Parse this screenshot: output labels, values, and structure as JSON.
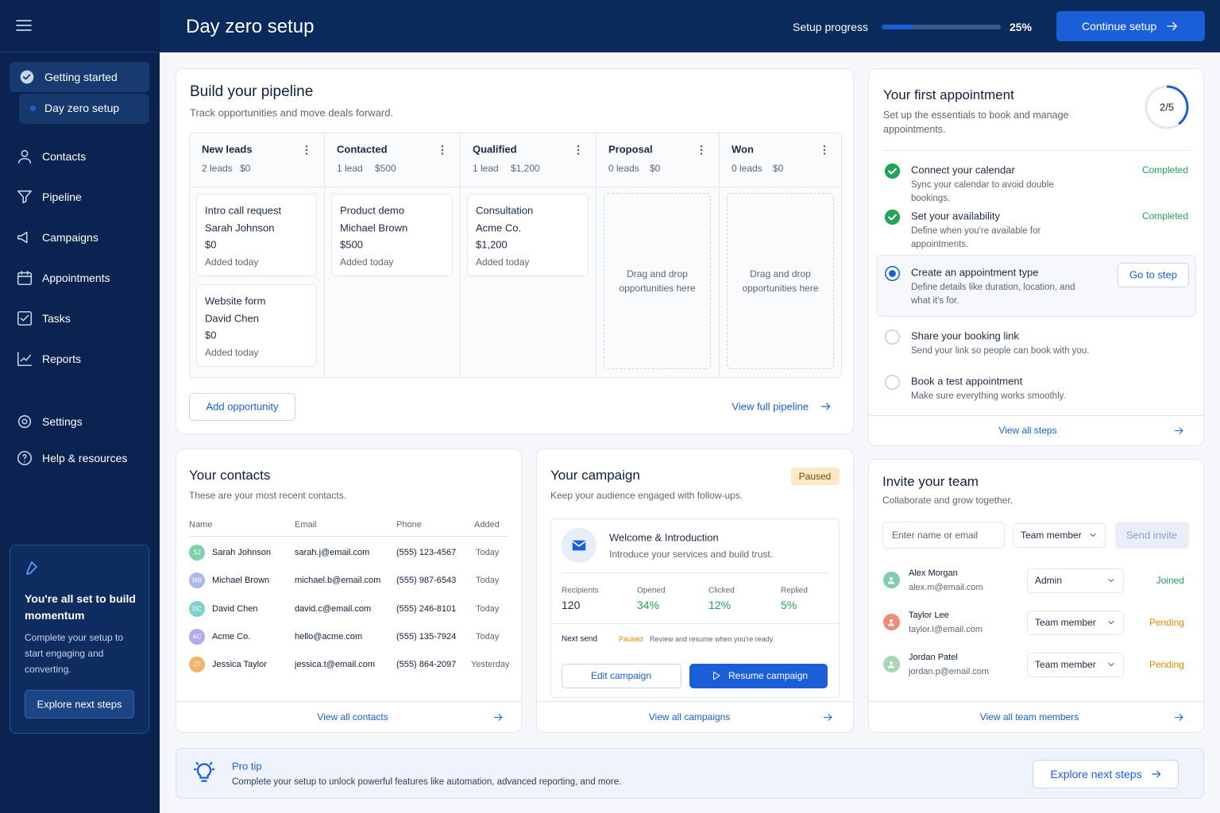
{
  "header": {
    "title": "Day zero setup",
    "progress_label": "Setup progress",
    "progress": {
      "value": 25,
      "label": "25%"
    },
    "button": "Continue setup"
  },
  "sidebar": {
    "items": [
      {
        "label": "Getting started",
        "sub": "Day zero setup"
      },
      {
        "label": "Contacts"
      },
      {
        "label": "Pipeline"
      },
      {
        "label": "Campaigns"
      },
      {
        "label": "Appointments"
      },
      {
        "label": "Tasks"
      },
      {
        "label": "Reports"
      },
      {
        "label": "Settings"
      },
      {
        "label": "Help & resources"
      }
    ],
    "promo": {
      "title": "You're all set to build momentum",
      "text": "Complete your setup to start engaging and converting.",
      "button": "Explore next steps"
    }
  },
  "pipeline": {
    "title": "Build your pipeline",
    "subtitle": "Track opportunities and move deals forward.",
    "columns": [
      {
        "name": "New leads",
        "count": "2 leads",
        "amount": "$0",
        "cards": [
          [
            "Intro call request",
            "Sarah Johnson",
            "$0",
            "Added today"
          ],
          [
            "Website form",
            "David Chen",
            "$0",
            "Added today"
          ]
        ]
      },
      {
        "name": "Contacted",
        "count": "1 lead",
        "amount": "$500",
        "cards": [
          [
            "Product demo",
            "Michael Brown",
            "$500",
            "Added today"
          ]
        ]
      },
      {
        "name": "Qualified",
        "count": "1 lead",
        "amount": "$1,200",
        "cards": [
          [
            "Consultation",
            "Acme Co.",
            "$1,200",
            "Added today"
          ]
        ]
      },
      {
        "name": "Proposal",
        "count": "0 leads",
        "amount": "$0",
        "empty": "Drag and drop opportunities here"
      },
      {
        "name": "Won",
        "count": "0 leads",
        "amount": "$0",
        "empty": "Drag and drop opportunities here"
      }
    ],
    "add_button": "Add opportunity",
    "view_link": "View full pipeline"
  },
  "appointment": {
    "title": "Your first appointment",
    "subtitle": "Set up the essentials to book and manage appointments.",
    "progress": {
      "value": 2,
      "total": 5,
      "label": "2/5"
    },
    "steps": [
      {
        "title": "Connect your calendar",
        "desc": "Sync your calendar to avoid double bookings.",
        "status": "Completed"
      },
      {
        "title": "Set your availability",
        "desc": "Define when you're available for appointments.",
        "status": "Completed"
      },
      {
        "title": "Create an appointment type",
        "desc": "Define details like duration, location, and what it's for.",
        "action": "Go to step"
      },
      {
        "title": "Share your booking link",
        "desc": "Send your link so people can book with you."
      },
      {
        "title": "Book a test appointment",
        "desc": "Make sure everything works smoothly."
      }
    ],
    "view_all": "View all steps"
  },
  "contacts": {
    "title": "Your contacts",
    "subtitle": "These are your most recent contacts.",
    "columns": [
      "Name",
      "Email",
      "Phone",
      "Added"
    ],
    "rows": [
      [
        "SJ",
        "Sarah Johnson",
        "sarah.j@email.com",
        "(555) 123-4567",
        "Today"
      ],
      [
        "MB",
        "Michael Brown",
        "michael.b@email.com",
        "(555) 987-6543",
        "Today"
      ],
      [
        "DC",
        "David Chen",
        "david.c@email.com",
        "(555) 246-8101",
        "Today"
      ],
      [
        "AC",
        "Acme Co.",
        "hello@acme.com",
        "(555) 135-7924",
        "Today"
      ],
      [
        "JT",
        "Jessica Taylor",
        "jessica.t@email.com",
        "(555) 864-2097",
        "Yesterday"
      ]
    ],
    "view_all": "View all contacts"
  },
  "campaign": {
    "title": "Your campaign",
    "status": "Paused",
    "subtitle": "Keep your audience engaged with follow-ups.",
    "item_title": "Welcome & Introduction",
    "item_desc": "Introduce your services and build trust.",
    "stats": [
      {
        "label": "Recipients",
        "value": "120"
      },
      {
        "label": "Opened",
        "value": "34%"
      },
      {
        "label": "Clicked",
        "value": "12%"
      },
      {
        "label": "Replied",
        "value": "5%"
      }
    ],
    "next_send_label": "Next send",
    "next_send_status": "Paused",
    "next_send_note": "Review and resume when you're ready.",
    "edit": "Edit campaign",
    "resume": "Resume campaign",
    "view_all": "View all campaigns"
  },
  "team": {
    "title": "Invite your team",
    "subtitle": "Collaborate and grow together.",
    "input_placeholder": "Enter name or email",
    "role_default": "Team member",
    "send": "Send invite",
    "members": [
      {
        "name": "Alex Morgan",
        "email": "alex.m@email.com",
        "role": "Admin",
        "status": "Joined"
      },
      {
        "name": "Taylor Lee",
        "email": "taylor.l@email.com",
        "role": "Team member",
        "status": "Pending"
      },
      {
        "name": "Jordan Patel",
        "email": "jordan.p@email.com",
        "role": "Team member",
        "status": "Pending"
      }
    ],
    "view_all": "View all team members"
  },
  "tip": {
    "title": "Pro tip",
    "text": "Complete your setup to unlock powerful features like automation, advanced reporting, and more.",
    "button": "Explore next steps"
  }
}
